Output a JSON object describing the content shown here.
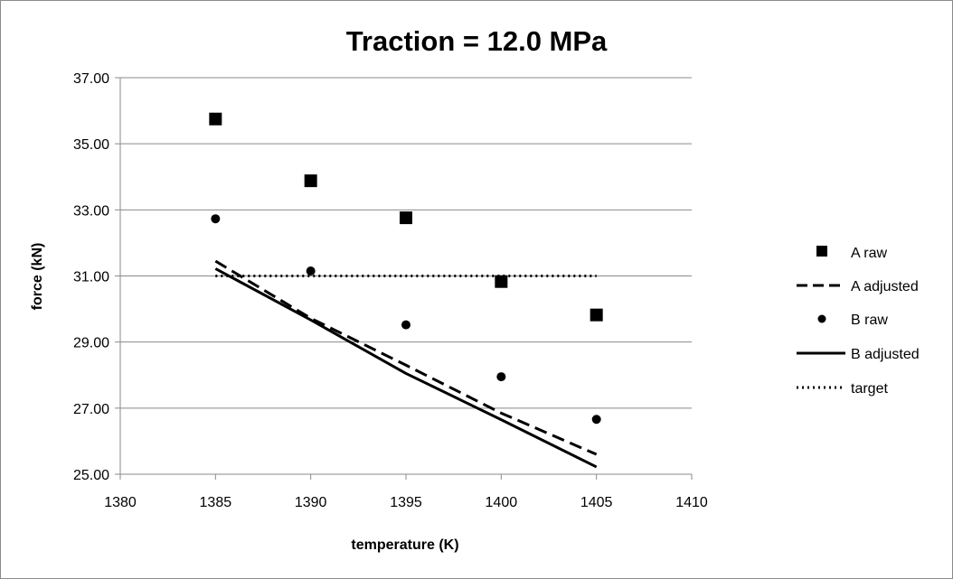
{
  "chart_data": {
    "type": "scatter",
    "title": "Traction = 12.0 MPa",
    "xlabel": "temperature (K)",
    "ylabel": "force (kN)",
    "xlim": [
      1380,
      1410
    ],
    "ylim": [
      25,
      37
    ],
    "x_ticks": [
      1380,
      1385,
      1390,
      1395,
      1400,
      1405,
      1410
    ],
    "y_ticks": [
      25,
      27,
      29,
      31,
      33,
      35,
      37
    ],
    "x_tick_labels": [
      "1380",
      "1385",
      "1390",
      "1395",
      "1400",
      "1405",
      "1410"
    ],
    "y_tick_labels": [
      "25.00",
      "27.00",
      "29.00",
      "31.00",
      "33.00",
      "35.00",
      "37.00"
    ],
    "grid": "horizontal",
    "legend_position": "right",
    "series": [
      {
        "name": "A raw",
        "style": "square-marker",
        "x": [
          1385,
          1390,
          1395,
          1400,
          1405
        ],
        "y": [
          35.75,
          33.88,
          32.76,
          30.83,
          29.82
        ]
      },
      {
        "name": "A adjusted",
        "style": "dashed-line",
        "x": [
          1385,
          1390,
          1395,
          1400,
          1405
        ],
        "y": [
          31.45,
          29.72,
          28.3,
          26.85,
          25.6
        ]
      },
      {
        "name": "B raw",
        "style": "circle-marker",
        "x": [
          1385,
          1390,
          1395,
          1400,
          1405
        ],
        "y": [
          32.73,
          31.15,
          29.52,
          27.95,
          26.66
        ]
      },
      {
        "name": "B adjusted",
        "style": "solid-line",
        "x": [
          1385,
          1390,
          1395,
          1400,
          1405
        ],
        "y": [
          31.22,
          29.67,
          28.05,
          26.65,
          25.22
        ]
      },
      {
        "name": "target",
        "style": "dotted-line",
        "x": [
          1385,
          1405
        ],
        "y": [
          31.0,
          31.0
        ]
      }
    ]
  }
}
